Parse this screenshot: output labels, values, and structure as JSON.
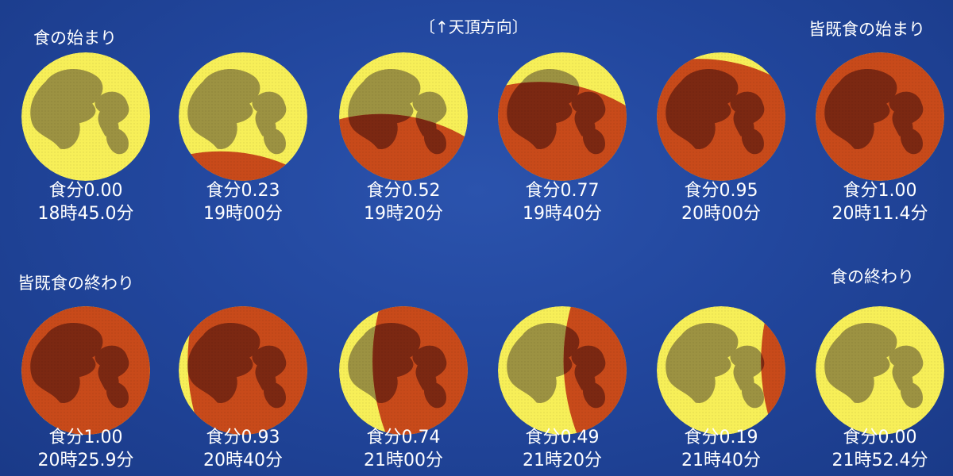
{
  "header": {
    "zenith_label": "〔↑天頂方向〕",
    "start_label": "食の始まり",
    "totality_start_label": "皆既食の始まり",
    "totality_end_label": "皆既食の終わり",
    "end_label": "食の終わり"
  },
  "colors": {
    "background": "#1d3f92",
    "moon_bright": "#f7ef58",
    "maria_bright": "#9c9242",
    "moon_shadow": "#c84a1a",
    "maria_shadow": "#7b2812",
    "text": "#ffffff"
  },
  "phases": [
    {
      "magnitude": "食分0.00",
      "time": "18時45.0分",
      "eclipsed_fraction": 0.0
    },
    {
      "magnitude": "食分0.23",
      "time": "19時00分",
      "eclipsed_fraction": 0.23
    },
    {
      "magnitude": "食分0.52",
      "time": "19時20分",
      "eclipsed_fraction": 0.52
    },
    {
      "magnitude": "食分0.77",
      "time": "19時40分",
      "eclipsed_fraction": 0.77
    },
    {
      "magnitude": "食分0.95",
      "time": "20時00分",
      "eclipsed_fraction": 0.95
    },
    {
      "magnitude": "食分1.00",
      "time": "20時11.4分",
      "eclipsed_fraction": 1.0
    },
    {
      "magnitude": "食分1.00",
      "time": "20時25.9分",
      "eclipsed_fraction": 1.0
    },
    {
      "magnitude": "食分0.93",
      "time": "20時40分",
      "eclipsed_fraction": 0.93
    },
    {
      "magnitude": "食分0.74",
      "time": "21時00分",
      "eclipsed_fraction": 0.74
    },
    {
      "magnitude": "食分0.49",
      "time": "21時20分",
      "eclipsed_fraction": 0.49
    },
    {
      "magnitude": "食分0.19",
      "time": "21時40分",
      "eclipsed_fraction": 0.19
    },
    {
      "magnitude": "食分0.00",
      "time": "21時52.4分",
      "eclipsed_fraction": 0.0
    }
  ]
}
